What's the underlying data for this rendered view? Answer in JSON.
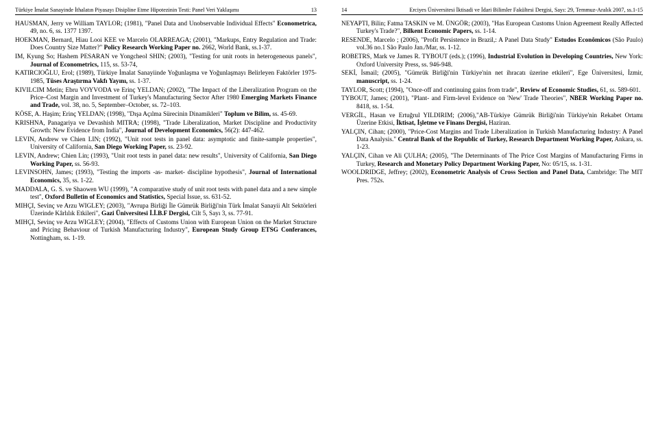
{
  "left": {
    "header_title": "Türkiye İmalat Sanayinde İthalatın Piyasayı Disipline Etme Hipotezinin Testi: Panel Veri Yaklaşımı",
    "header_pageno": "13",
    "refs": [
      {
        "plain": "HAUSMAN, Jerry ve William TAYLOR; (1981), \"Panel Data and Unobservable Individual Effects\" ",
        "bold": "Econometrica,",
        "tail": " 49, no. 6, ss. 1377 1397."
      },
      {
        "plain": "HOEKMAN, Bernard, Hiau Looi KEE ve Marcelo OLARREAGA; (2001), \"Markups, Entry Regulation and Trade: Does Country Size Matter?\" ",
        "bold": "Policy Research Working Paper no.",
        "tail": " 2662, World Bank, ss.1-37."
      },
      {
        "plain": "IM, Kyung So; Hashem PESARAN ve Yongcheol SHIN; (2003), \"Testing for unit roots in heterogeneous panels\", ",
        "bold": "Journal of Econometrics,",
        "tail": " 115, ss. 53-74,"
      },
      {
        "plain": "KATIRCIOĞLU, Erol; (1989), Türkiye İmalat Sanayiinde Yoğunlaşma ve Yoğunlaşmayı Belirleyen Faktörler 1975-1985, ",
        "bold": "Tüses Araştırma Vakfı Yayını,",
        "tail": " ss. 1-37."
      },
      {
        "plain": "KIVILCIM Metin; Ebru VOYVODA ve Erinç YELDAN; (2002), \"The Impact of the Liberalization Program on the Price–Cost Margin and Investment of Turkey's Manufacturing Sector After 1980 ",
        "bold": "Emerging Markets Finance and Trade,",
        "tail": " vol. 38, no. 5,  September–October, ss. 72–103."
      },
      {
        "plain": "KÖSE, A. Haşim; Erinç YELDAN; (1998), \"Dışa Açılma Sürecinin Dinamikleri\" ",
        "bold": "Toplum ve Bilim,",
        "tail": " ss. 45-69."
      },
      {
        "plain": "KRISHNA, Panagariya ve Devashish MITRA; (1998), \"Trade Liberalization, Market Discipline and Productivity Growth: New Evidence from India\", ",
        "bold": "Journal of Development Economics,",
        "tail": " 56(2): 447-462."
      },
      {
        "plain": "LEVIN, Andrew ve Chien LIN; (1992), \"Unit root tests in panel data: asymptotic and finite-sample properties\", University of California, ",
        "bold": "San Diego Working Paper,",
        "tail": " ss. 23-92."
      },
      {
        "plain": "LEVIN, Andrew; Chien Lin; (1993), \"Unit root tests in panel data: new results\", University of California, ",
        "bold": "San Diego Working Paper,",
        "tail": " ss. 56-93."
      },
      {
        "plain": "LEVINSOHN, James; (1993), \"Testing the imports -as- market- discipline hypothesis\", ",
        "bold": "Journal of International Economics,",
        "tail": " 35, ss. 1-22."
      },
      {
        "plain": "MADDALA, G. S. ve Shaowen WU (1999), \"A comparative study of unit root tests with panel data and a new simple test\", ",
        "bold": "Oxford Bulletin of Economics and Statistics,",
        "tail": " Special Issue, ss. 631-52."
      },
      {
        "plain": "MIHÇI, Sevinç ve Arzu WIGLEY; (2003), \"Avrupa Birliği İle Gümrük Birliği'nin Türk İmalat Sanayii Alt Sektörleri Üzerinde Kârlılık Etkileri\", ",
        "bold": "Gazi Üniversitesi İ.İ.B.F Dergisi,",
        "tail": " Cilt 5, Sayı 3, ss. 77-91."
      },
      {
        "plain": "MIHÇI, Sevinç ve Arzu WIGLEY; (2004), \"Effects of Customs Union with European Union on the Market Structure and Pricing Behaviour of Turkish Manufacturing Industry\", ",
        "bold": "European Study Group ETSG Conferances,",
        "tail": " Nottingham, ss. 1-19."
      }
    ]
  },
  "right": {
    "header_title": "Erciyes Üniversitesi İktisadi ve İdari Bilimler Fakültesi Dergisi, Sayı: 29, Temmuz-Aralık 2007, ss.1-15",
    "header_pageno": "14",
    "refs": [
      {
        "plain": "NEYAPTI, Bilin; Fatma TASKIN ve M. ÜNGÖR; (2003), \"Has European Customs Union Agreement Really Affected Turkey's Trade?\", ",
        "bold": "Bilkent Economic Papers,",
        "tail": " ss. 1-14."
      },
      {
        "plain": "RESENDE, Marcelo ; (2006), \"Profit Persistence in Brazil,: A Panel Data Study\" ",
        "bold": "Estudos Econômicos",
        "tail": " (São Paulo) vol.36 no.1 São Paulo Jan./Mar, ss. 1-12."
      },
      {
        "plain": "ROBETRS, Mark ve James R. TYBOUT (eds.); (1996), ",
        "bold": "Industrial Evolution in Developing Countries,",
        "tail": " New York: Oxford University Press, ss. 946-948."
      },
      {
        "plain": "SEKİ, İsmail; (2005), \"Gümrük Birliği'nin Türkiye'nin net ihracatı üzerine etkileri\", Ege Üniversitesi, İzmir, ",
        "bold": "manuscript,",
        "tail": " ss. 1-24."
      },
      {
        "plain": "TAYLOR, Scott; (1994), \"Once-off and continuing gains from trade\", ",
        "bold": "Review of Economic Studies,",
        "tail": " 61, ss. 589-601."
      },
      {
        "plain": "TYBOUT, James; (2001), \"Plant- and Firm-level Evidence on 'New' Trade Theories\", ",
        "bold": "NBER Working Paper no.",
        "tail": " 8418, ss. 1-54."
      },
      {
        "plain": "VERGİL, Hasan ve Ertuğrul YILDIRIM; (2006),\"AB-Türkiye Gümrük Birliği'nin Türkiye'nin Rekabet Ortamı Üzerine Etkisi, ",
        "bold": "İktisat, İşletme ve Finans Dergisi,",
        "tail": " Haziran."
      },
      {
        "plain": "YALÇIN, Cihan; (2000), \"Price-Cost Margins and Trade Liberalization in Turkish Manufacturing Industry: A Panel Data Analysis.\" ",
        "bold": "Central Bank of the Republic of Turkey, Research Department Working Paper,",
        "tail": " Ankara, ss. 1-23."
      },
      {
        "plain": "YALÇIN, Cihan ve Ali ÇULHA; (2005), \"The Determinants of The Price Cost Margins of Manufacturing Firms in Turkey, ",
        "bold": "Research and Monetary Policy Department Working Paper,",
        "tail": " No: 05/15, ss. 1-31."
      },
      {
        "plain": "WOOLDRIDGE, Jeffrey; (2002), ",
        "bold": "Econometric Analysis of Cross Section and Panel Data,",
        "tail": " Cambridge: The MIT Pres. 752s."
      }
    ]
  }
}
